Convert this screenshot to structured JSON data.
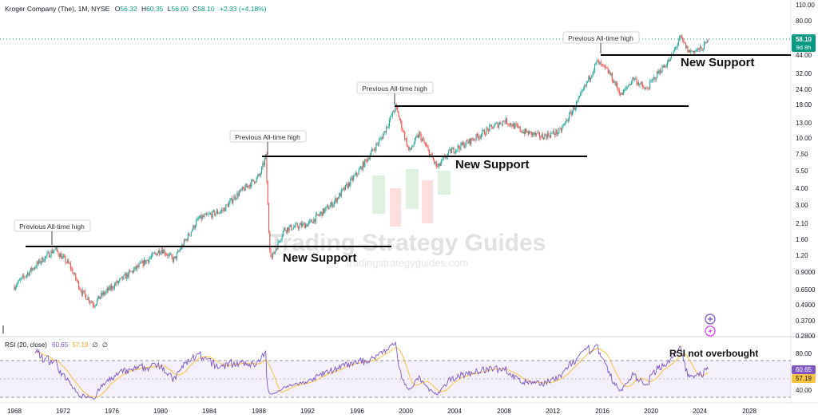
{
  "header": {
    "symbol": "Kroger Company (The), 1M, NYSE",
    "open_label": "O",
    "open": "56.32",
    "high_label": "H",
    "high": "60.35",
    "low_label": "L",
    "low": "56.00",
    "close_label": "C",
    "close": "58.10",
    "change": "+2.33 (+4.18%)"
  },
  "price_tag": {
    "price": "58.10",
    "countdown": "9d 8h"
  },
  "rsi_header": {
    "label": "RSI (20, close)",
    "rsi": "60.65",
    "ma": "57.19",
    "extra1": "∅",
    "extra2": "∅"
  },
  "rsi_tags": {
    "rsi": "60.65",
    "ma": "57.19"
  },
  "watermark": {
    "title": "Trading Strategy Guides",
    "url": "tradingstrategyguides.com"
  },
  "annotations": {
    "ath1": "Previous All-time high",
    "ath2": "Previous All-time high",
    "ath3": "Previous All-time high",
    "ath4": "Previous All-time high",
    "sup1": "New Support",
    "sup2": "New Support",
    "sup3": "New Support",
    "rsi_note": "RSI not overbought"
  },
  "colors": {
    "up": "#26a69a",
    "down": "#ef5350",
    "rsi_line": "#7e57c2",
    "rsi_ma": "#f6c244",
    "accent": "#7e57c2",
    "last_price": "#089981"
  },
  "chart_data": [
    {
      "type": "candlestick",
      "title": "Kroger Company (The), 1M, NYSE",
      "y_scale": "log",
      "y_ticks": [
        "110.00",
        "80.00",
        "58.10",
        "44.00",
        "32.00",
        "24.00",
        "18.00",
        "13.00",
        "10.00",
        "7.50",
        "5.50",
        "4.00",
        "3.00",
        "2.10",
        "1.60",
        "1.20",
        "0.9000",
        "0.6500",
        "0.4900",
        "0.3700",
        "0.2800"
      ],
      "x_ticks": [
        "1968",
        "1972",
        "1976",
        "1980",
        "1984",
        "1988",
        "1992",
        "1996",
        "2000",
        "2004",
        "2008",
        "2012",
        "2016",
        "2020",
        "2024",
        "2028"
      ],
      "last_close": 58.1,
      "approx_path": [
        [
          1968.0,
          0.72
        ],
        [
          1970.0,
          1.1
        ],
        [
          1971.3,
          1.4
        ],
        [
          1972.5,
          1.05
        ],
        [
          1973.5,
          0.65
        ],
        [
          1974.5,
          0.52
        ],
        [
          1975.0,
          0.6
        ],
        [
          1977.0,
          0.85
        ],
        [
          1980.0,
          1.4
        ],
        [
          1981.0,
          1.15
        ],
        [
          1983.0,
          2.4
        ],
        [
          1985.0,
          2.8
        ],
        [
          1986.0,
          3.6
        ],
        [
          1988.0,
          5.2
        ],
        [
          1988.5,
          7.3
        ],
        [
          1988.8,
          1.5
        ],
        [
          1989.0,
          1.2
        ],
        [
          1990.0,
          2.0
        ],
        [
          1992.0,
          2.2
        ],
        [
          1994.0,
          3.2
        ],
        [
          1996.0,
          5.5
        ],
        [
          1998.0,
          10.5
        ],
        [
          1999.1,
          18.0
        ],
        [
          2000.2,
          8.0
        ],
        [
          2001.0,
          11.0
        ],
        [
          2002.5,
          6.0
        ],
        [
          2003.5,
          8.0
        ],
        [
          2005.0,
          9.5
        ],
        [
          2007.0,
          12.5
        ],
        [
          2008.0,
          14.0
        ],
        [
          2009.5,
          11.5
        ],
        [
          2011.0,
          10.5
        ],
        [
          2012.5,
          11.5
        ],
        [
          2014.0,
          20.0
        ],
        [
          2015.5,
          40.0
        ],
        [
          2016.5,
          33.0
        ],
        [
          2017.5,
          22.0
        ],
        [
          2018.5,
          30.0
        ],
        [
          2019.5,
          24.0
        ],
        [
          2020.5,
          33.0
        ],
        [
          2021.5,
          42.0
        ],
        [
          2022.3,
          62.0
        ],
        [
          2023.0,
          48.0
        ],
        [
          2024.0,
          50.0
        ],
        [
          2024.6,
          58.1
        ]
      ],
      "horizontal_levels": [
        1.42,
        7.0,
        18.0,
        44.0
      ],
      "annotations": [
        "Previous All-time high",
        "New Support",
        "RSI not overbought"
      ]
    },
    {
      "type": "line",
      "title": "RSI (20, close)",
      "y_ticks": [
        "80.00",
        "60.65",
        "57.19",
        "40.00"
      ],
      "bands": [
        70,
        30
      ],
      "series": [
        {
          "name": "RSI",
          "last": 60.65
        },
        {
          "name": "MA",
          "last": 57.19
        }
      ]
    }
  ]
}
